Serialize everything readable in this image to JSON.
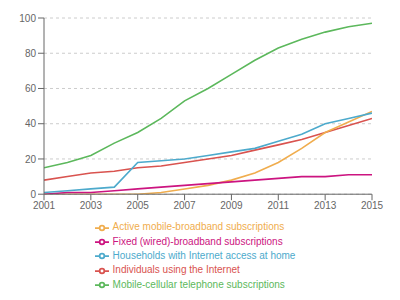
{
  "chart_data": {
    "type": "line",
    "x": [
      2001,
      2002,
      2003,
      2004,
      2005,
      2006,
      2007,
      2008,
      2009,
      2010,
      2011,
      2012,
      2013,
      2014,
      2015
    ],
    "series": [
      {
        "name": "Mobile-cellular telephone subscriptions",
        "color": "#5cb85c",
        "values": [
          15,
          18,
          22,
          29,
          35,
          43,
          53,
          60,
          68,
          76,
          83,
          88,
          92,
          95,
          97
        ]
      },
      {
        "name": "Individuals using the Internet",
        "color": "#d9534f",
        "values": [
          8,
          10,
          12,
          13,
          15,
          16,
          18,
          20,
          22,
          25,
          28,
          31,
          35,
          39,
          43
        ]
      },
      {
        "name": "Active mobile-broadband subscriptions",
        "color": "#f0ad4e",
        "values": [
          0,
          0,
          0,
          0,
          0,
          1,
          3,
          5,
          8,
          12,
          18,
          26,
          35,
          41,
          47
        ]
      },
      {
        "name": "Fixed (wired)-broadband subscriptions",
        "color": "#cc1480",
        "values": [
          0,
          1,
          1,
          2,
          3,
          4,
          5,
          6,
          7,
          8,
          9,
          10,
          10,
          11,
          11
        ]
      },
      {
        "name": "Households with Internet access at home",
        "color": "#4daacc",
        "values": [
          1,
          2,
          3,
          4,
          18,
          19,
          20,
          22,
          24,
          26,
          30,
          34,
          40,
          43,
          46
        ]
      }
    ],
    "xlim": [
      2001,
      2015
    ],
    "ylim": [
      0,
      100
    ],
    "xticks": [
      2001,
      2003,
      2005,
      2007,
      2009,
      2011,
      2013,
      2015
    ],
    "yticks": [
      0,
      20,
      40,
      60,
      80,
      100
    ],
    "grid": "y",
    "legend": "bottom"
  }
}
